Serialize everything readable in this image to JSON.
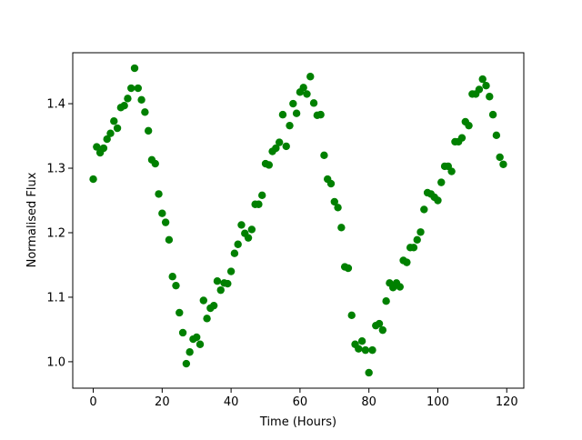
{
  "chart_data": {
    "type": "scatter",
    "xlabel": "Time (Hours)",
    "ylabel": "Normalised Flux",
    "color": "#008000",
    "grid": false,
    "xlim": [
      -5.95,
      124.95
    ],
    "ylim": [
      0.959,
      1.479
    ],
    "xticks": [
      0,
      20,
      40,
      60,
      80,
      100,
      120
    ],
    "yticks": [
      {
        "value": 1,
        "label": "1.0"
      },
      1.1,
      1.2,
      1.3,
      1.4
    ],
    "x": [
      0,
      1,
      2,
      3,
      4,
      5,
      6,
      7,
      8,
      9,
      10,
      11,
      12,
      13,
      14,
      15,
      16,
      17,
      18,
      19,
      20,
      21,
      22,
      23,
      24,
      25,
      26,
      27,
      28,
      29,
      30,
      31,
      32,
      33,
      34,
      35,
      36,
      37,
      38,
      39,
      40,
      41,
      42,
      43,
      44,
      45,
      46,
      47,
      48,
      49,
      50,
      51,
      52,
      53,
      54,
      55,
      56,
      57,
      58,
      59,
      60,
      61,
      62,
      63,
      64,
      65,
      66,
      67,
      68,
      69,
      70,
      71,
      72,
      73,
      74,
      75,
      76,
      77,
      78,
      79,
      80,
      81,
      82,
      83,
      84,
      85,
      86,
      87,
      88,
      89,
      90,
      91,
      92,
      93,
      94,
      95,
      96,
      97,
      98,
      99,
      100,
      101,
      102,
      103,
      104,
      105,
      106,
      107,
      108,
      109,
      110,
      111,
      112,
      113,
      114,
      115,
      116,
      117,
      118,
      119
    ],
    "values": [
      1.283,
      1.333,
      1.324,
      1.331,
      1.345,
      1.354,
      1.373,
      1.362,
      1.394,
      1.397,
      1.408,
      1.424,
      1.455,
      1.424,
      1.406,
      1.387,
      1.358,
      1.313,
      1.307,
      1.26,
      1.23,
      1.216,
      1.189,
      1.132,
      1.118,
      1.076,
      1.045,
      0.997,
      1.015,
      1.035,
      1.038,
      1.027,
      1.095,
      1.067,
      1.083,
      1.087,
      1.125,
      1.111,
      1.122,
      1.121,
      1.14,
      1.168,
      1.182,
      1.212,
      1.199,
      1.192,
      1.205,
      1.244,
      1.244,
      1.258,
      1.307,
      1.305,
      1.326,
      1.331,
      1.34,
      1.383,
      1.334,
      1.366,
      1.4,
      1.385,
      1.418,
      1.425,
      1.415,
      1.442,
      1.401,
      1.382,
      1.383,
      1.32,
      1.283,
      1.276,
      1.248,
      1.239,
      1.208,
      1.147,
      1.145,
      1.072,
      1.027,
      1.02,
      1.032,
      1.018,
      0.983,
      1.018,
      1.056,
      1.059,
      1.049,
      1.094,
      1.122,
      1.115,
      1.122,
      1.116,
      1.157,
      1.154,
      1.177,
      1.177,
      1.189,
      1.201,
      1.236,
      1.262,
      1.26,
      1.255,
      1.25,
      1.278,
      1.303,
      1.303,
      1.295,
      1.341,
      1.341,
      1.347,
      1.372,
      1.366,
      1.415,
      1.415,
      1.422,
      1.438,
      1.428,
      1.411,
      1.383,
      1.351,
      1.317,
      1.306
    ]
  }
}
